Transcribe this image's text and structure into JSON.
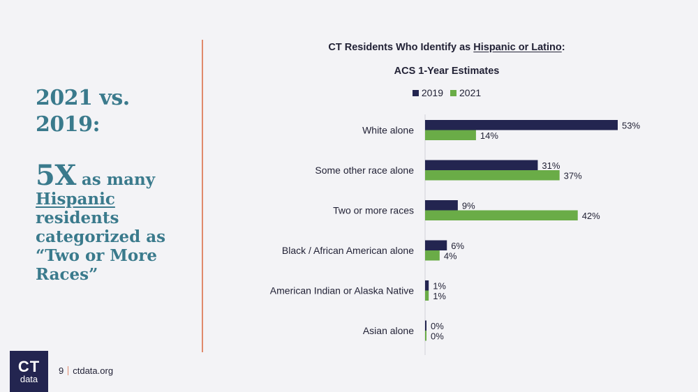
{
  "headline": {
    "compare": "2021 vs. 2019:",
    "multiplier": "5X",
    "line1_rest": "as many",
    "line2_underlined": "Hispanic",
    "line2_rest": "residents",
    "line3": "categorized as",
    "line4": "“Two or More",
    "line5": "Races”"
  },
  "chart_data": {
    "type": "bar",
    "orientation": "horizontal",
    "title_prefix": "CT Residents Who Identify as",
    "title_underlined": "Hispanic or Latino",
    "title_suffix": ":",
    "subtitle": "ACS 1-Year Estimates",
    "categories": [
      "White alone",
      "Some other race alone",
      "Two or more races",
      "Black / African American alone",
      "American Indian or Alaska Native",
      "Asian alone"
    ],
    "series": [
      {
        "name": "2019",
        "values": [
          53,
          31,
          9,
          6,
          1,
          0
        ],
        "labels": [
          "53%",
          "31%",
          "9%",
          "6%",
          "1%",
          "0%"
        ],
        "color": "#232550"
      },
      {
        "name": "2021",
        "values": [
          14,
          37,
          42,
          4,
          1,
          0
        ],
        "labels": [
          "14%",
          "37%",
          "42%",
          "4%",
          "1%",
          "0%"
        ],
        "color": "#6aac47"
      }
    ],
    "xlim": [
      0,
      53
    ],
    "legend_position": "top-center",
    "grid": false
  },
  "footer": {
    "logo_top": "CT",
    "logo_bottom": "data",
    "page_number": "9",
    "site": "ctdata.org"
  },
  "colors": {
    "accent_text": "#3a7a8c",
    "divider": "#e08a6c",
    "navy": "#232550",
    "green": "#6aac47"
  }
}
